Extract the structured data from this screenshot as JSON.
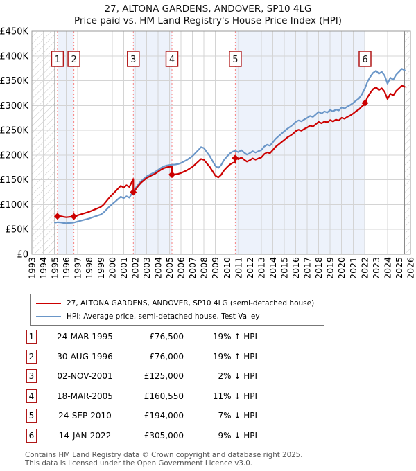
{
  "page": {
    "title_line1": "27, ALTONA GARDENS, ANDOVER, SP10 4LG",
    "title_line2": "Price paid vs. HM Land Registry's House Price Index (HPI)"
  },
  "chart_data": {
    "type": "line",
    "title": "27, ALTONA GARDENS, ANDOVER, SP10 4LG",
    "subtitle": "Price paid vs. HM Land Registry's House Price Index (HPI)",
    "x_axis": {
      "min": 1993,
      "max": 2026,
      "tick_years": [
        1993,
        1994,
        1995,
        1996,
        1997,
        1998,
        1999,
        2000,
        2001,
        2002,
        2003,
        2004,
        2005,
        2006,
        2007,
        2008,
        2009,
        2010,
        2011,
        2012,
        2013,
        2014,
        2015,
        2016,
        2017,
        2018,
        2019,
        2020,
        2021,
        2022,
        2023,
        2024,
        2025,
        2026
      ]
    },
    "y_axis": {
      "min_k": 0,
      "max_k": 450,
      "step_k": 50,
      "tick_labels": [
        "£0",
        "£50K",
        "£100K",
        "£150K",
        "£200K",
        "£250K",
        "£300K",
        "£350K",
        "£400K",
        "£450K"
      ]
    },
    "grid": true,
    "legend_position": "below",
    "values_unit": "GBP thousands",
    "data_range_years": [
      1995.0,
      2025.5
    ],
    "no_data_hatch": [
      [
        1993,
        1995.0
      ],
      [
        2025.5,
        2026
      ]
    ],
    "ownership_bands": [
      [
        1995.23,
        1996.66
      ],
      [
        2001.84,
        2005.21
      ],
      [
        2010.73,
        2022.04
      ]
    ],
    "colors": {
      "property": "#cc0000",
      "hpi": "#6a96c8",
      "band": "#edf2fb",
      "grid": "#d4d4d4",
      "sale_line": "#f88080",
      "marker_box_border": "#b01818",
      "hatch": "#c8c8c8",
      "boundary": "#8a8a8a",
      "axis_text": "#000000"
    },
    "sales": [
      {
        "n": 1,
        "year": 1995.23,
        "price_k": 76.5
      },
      {
        "n": 2,
        "year": 1996.66,
        "price_k": 76.0
      },
      {
        "n": 3,
        "year": 2001.84,
        "price_k": 125.0
      },
      {
        "n": 4,
        "year": 2005.21,
        "price_k": 160.55
      },
      {
        "n": 5,
        "year": 2010.73,
        "price_k": 194.0
      },
      {
        "n": 6,
        "year": 2022.04,
        "price_k": 305.0
      }
    ],
    "series": [
      {
        "id": "property",
        "z": 2,
        "name": "27, ALTONA GARDENS, ANDOVER, SP10 4LG (semi-detached house)",
        "color": "#cc0000",
        "points": [
          [
            1995.23,
            76.5
          ],
          [
            1995.4,
            76.8
          ],
          [
            1995.6,
            76.1
          ],
          [
            1995.8,
            75.2
          ],
          [
            1996.0,
            74.5
          ],
          [
            1996.2,
            75.0
          ],
          [
            1996.45,
            75.6
          ],
          [
            1996.66,
            76.0
          ],
          [
            1997.0,
            78.5
          ],
          [
            1997.25,
            80.3
          ],
          [
            1997.5,
            82.1
          ],
          [
            1997.75,
            83.9
          ],
          [
            1998.0,
            85.7
          ],
          [
            1998.25,
            88.1
          ],
          [
            1998.5,
            90.4
          ],
          [
            1998.75,
            92.8
          ],
          [
            1999.0,
            95.2
          ],
          [
            1999.25,
            100
          ],
          [
            1999.5,
            107.1
          ],
          [
            1999.75,
            114.2
          ],
          [
            2000.0,
            120.2
          ],
          [
            2000.25,
            126.1
          ],
          [
            2000.5,
            132.1
          ],
          [
            2000.75,
            138
          ],
          [
            2001.0,
            134.5
          ],
          [
            2001.25,
            139.2
          ],
          [
            2001.5,
            135.7
          ],
          [
            2001.84,
            151.8
          ],
          [
            2001.84,
            125
          ],
          [
            2002.0,
            129.3
          ],
          [
            2002.25,
            137.1
          ],
          [
            2002.5,
            144
          ],
          [
            2002.75,
            148.9
          ],
          [
            2003.0,
            153.8
          ],
          [
            2003.25,
            156.7
          ],
          [
            2003.5,
            159.7
          ],
          [
            2003.75,
            162.6
          ],
          [
            2004.0,
            166.5
          ],
          [
            2004.25,
            170.4
          ],
          [
            2004.5,
            173.4
          ],
          [
            2004.75,
            175.4
          ],
          [
            2005.0,
            176.3
          ],
          [
            2005.21,
            176.8
          ],
          [
            2005.21,
            160.55
          ],
          [
            2005.5,
            161.1
          ],
          [
            2005.75,
            162
          ],
          [
            2006.0,
            163.8
          ],
          [
            2006.25,
            166.4
          ],
          [
            2006.5,
            169.1
          ],
          [
            2006.75,
            172.7
          ],
          [
            2007.0,
            176.2
          ],
          [
            2007.25,
            181.6
          ],
          [
            2007.5,
            186.9
          ],
          [
            2007.75,
            192.2
          ],
          [
            2008.0,
            190.4
          ],
          [
            2008.25,
            183.3
          ],
          [
            2008.5,
            176.2
          ],
          [
            2008.75,
            167.3
          ],
          [
            2009.0,
            158.4
          ],
          [
            2009.25,
            154.9
          ],
          [
            2009.5,
            160.2
          ],
          [
            2009.75,
            169.1
          ],
          [
            2010.0,
            175.3
          ],
          [
            2010.25,
            180.7
          ],
          [
            2010.5,
            184.2
          ],
          [
            2010.73,
            185.7
          ],
          [
            2010.73,
            194
          ],
          [
            2011.0,
            191.6
          ],
          [
            2011.25,
            195.3
          ],
          [
            2011.5,
            190.7
          ],
          [
            2011.75,
            186.9
          ],
          [
            2012.0,
            189.7
          ],
          [
            2012.25,
            193.4
          ],
          [
            2012.5,
            190.7
          ],
          [
            2012.75,
            193.4
          ],
          [
            2013.0,
            195.3
          ],
          [
            2013.25,
            201.8
          ],
          [
            2013.5,
            205.5
          ],
          [
            2013.75,
            203.7
          ],
          [
            2014.0,
            210.2
          ],
          [
            2014.25,
            216.7
          ],
          [
            2014.5,
            221.3
          ],
          [
            2014.75,
            226
          ],
          [
            2015.0,
            230.6
          ],
          [
            2015.25,
            235.3
          ],
          [
            2015.5,
            239
          ],
          [
            2015.75,
            242.7
          ],
          [
            2016.0,
            248.3
          ],
          [
            2016.25,
            251.1
          ],
          [
            2016.5,
            249.2
          ],
          [
            2016.75,
            253
          ],
          [
            2017.0,
            255.8
          ],
          [
            2017.25,
            259.5
          ],
          [
            2017.5,
            257.6
          ],
          [
            2017.75,
            262.3
          ],
          [
            2018.0,
            266.9
          ],
          [
            2018.25,
            264.1
          ],
          [
            2018.5,
            267.8
          ],
          [
            2018.75,
            266
          ],
          [
            2019.0,
            270.6
          ],
          [
            2019.25,
            267.8
          ],
          [
            2019.5,
            271.6
          ],
          [
            2019.75,
            269.7
          ],
          [
            2020.0,
            275.3
          ],
          [
            2020.25,
            273.4
          ],
          [
            2020.5,
            277.1
          ],
          [
            2020.75,
            279.9
          ],
          [
            2021.0,
            283.7
          ],
          [
            2021.25,
            288.3
          ],
          [
            2021.5,
            292
          ],
          [
            2021.75,
            298
          ],
          [
            2022.04,
            303
          ],
          [
            2022.04,
            305
          ],
          [
            2022.25,
            316.7
          ],
          [
            2022.5,
            325.8
          ],
          [
            2022.75,
            333.1
          ],
          [
            2023.0,
            336.7
          ],
          [
            2023.25,
            331.2
          ],
          [
            2023.5,
            334.9
          ],
          [
            2023.75,
            327.6
          ],
          [
            2024.0,
            313
          ],
          [
            2024.25,
            324
          ],
          [
            2024.5,
            320.3
          ],
          [
            2024.75,
            329.4
          ],
          [
            2025.0,
            334.9
          ],
          [
            2025.25,
            340.3
          ],
          [
            2025.5,
            337.6
          ]
        ]
      },
      {
        "id": "hpi",
        "z": 1,
        "name": "HPI: Average price, semi-detached house, Test Valley",
        "color": "#6a96c8",
        "points": [
          [
            1995.0,
            63.5
          ],
          [
            1995.25,
            64.5
          ],
          [
            1995.5,
            64.0
          ],
          [
            1995.75,
            63.0
          ],
          [
            1996.0,
            62.5
          ],
          [
            1996.25,
            63.0
          ],
          [
            1996.5,
            63.5
          ],
          [
            1996.66,
            63.9
          ],
          [
            1997.0,
            66
          ],
          [
            1997.25,
            67.5
          ],
          [
            1997.5,
            69
          ],
          [
            1997.75,
            70.5
          ],
          [
            1998.0,
            72
          ],
          [
            1998.25,
            74
          ],
          [
            1998.5,
            76
          ],
          [
            1998.75,
            78
          ],
          [
            1999.0,
            80
          ],
          [
            1999.25,
            84
          ],
          [
            1999.5,
            90
          ],
          [
            1999.75,
            96
          ],
          [
            2000.0,
            101
          ],
          [
            2000.25,
            106
          ],
          [
            2000.5,
            111
          ],
          [
            2000.75,
            116
          ],
          [
            2001.0,
            113
          ],
          [
            2001.25,
            117
          ],
          [
            2001.5,
            114
          ],
          [
            2001.84,
            127.6
          ],
          [
            2002.0,
            132
          ],
          [
            2002.25,
            140
          ],
          [
            2002.5,
            147
          ],
          [
            2002.75,
            152
          ],
          [
            2003.0,
            157
          ],
          [
            2003.25,
            160
          ],
          [
            2003.5,
            163
          ],
          [
            2003.75,
            166
          ],
          [
            2004.0,
            170
          ],
          [
            2004.25,
            174
          ],
          [
            2004.5,
            177
          ],
          [
            2004.75,
            179
          ],
          [
            2005.0,
            180
          ],
          [
            2005.21,
            180.5
          ],
          [
            2005.5,
            181
          ],
          [
            2005.75,
            182
          ],
          [
            2006.0,
            184
          ],
          [
            2006.25,
            187
          ],
          [
            2006.5,
            190
          ],
          [
            2006.75,
            194
          ],
          [
            2007.0,
            198
          ],
          [
            2007.25,
            204
          ],
          [
            2007.5,
            210
          ],
          [
            2007.75,
            216
          ],
          [
            2008.0,
            214
          ],
          [
            2008.25,
            206
          ],
          [
            2008.5,
            198
          ],
          [
            2008.75,
            188
          ],
          [
            2009.0,
            178
          ],
          [
            2009.25,
            174
          ],
          [
            2009.5,
            180
          ],
          [
            2009.75,
            190
          ],
          [
            2010.0,
            197
          ],
          [
            2010.25,
            203
          ],
          [
            2010.5,
            207
          ],
          [
            2010.73,
            208.6
          ],
          [
            2011.0,
            206
          ],
          [
            2011.25,
            210
          ],
          [
            2011.5,
            205
          ],
          [
            2011.75,
            201
          ],
          [
            2012.0,
            204
          ],
          [
            2012.25,
            208
          ],
          [
            2012.5,
            205
          ],
          [
            2012.75,
            208
          ],
          [
            2013.0,
            210
          ],
          [
            2013.25,
            217
          ],
          [
            2013.5,
            221
          ],
          [
            2013.75,
            219
          ],
          [
            2014.0,
            226
          ],
          [
            2014.25,
            233
          ],
          [
            2014.5,
            238
          ],
          [
            2014.75,
            243
          ],
          [
            2015.0,
            248
          ],
          [
            2015.25,
            253
          ],
          [
            2015.5,
            257
          ],
          [
            2015.75,
            261
          ],
          [
            2016.0,
            267
          ],
          [
            2016.25,
            270
          ],
          [
            2016.5,
            268
          ],
          [
            2016.75,
            272
          ],
          [
            2017.0,
            275
          ],
          [
            2017.25,
            279
          ],
          [
            2017.5,
            277
          ],
          [
            2017.75,
            282
          ],
          [
            2018.0,
            287
          ],
          [
            2018.25,
            284
          ],
          [
            2018.5,
            288
          ],
          [
            2018.75,
            286
          ],
          [
            2019.0,
            291
          ],
          [
            2019.25,
            288
          ],
          [
            2019.5,
            292
          ],
          [
            2019.75,
            290
          ],
          [
            2020.0,
            296
          ],
          [
            2020.25,
            294
          ],
          [
            2020.5,
            298
          ],
          [
            2020.75,
            301
          ],
          [
            2021.0,
            305
          ],
          [
            2021.25,
            310
          ],
          [
            2021.5,
            314
          ],
          [
            2021.75,
            322
          ],
          [
            2022.04,
            335
          ],
          [
            2022.25,
            348
          ],
          [
            2022.5,
            358
          ],
          [
            2022.75,
            366
          ],
          [
            2023.0,
            370
          ],
          [
            2023.25,
            364
          ],
          [
            2023.5,
            368
          ],
          [
            2023.75,
            360
          ],
          [
            2024.0,
            344
          ],
          [
            2024.25,
            356
          ],
          [
            2024.5,
            352
          ],
          [
            2024.75,
            362
          ],
          [
            2025.0,
            368
          ],
          [
            2025.25,
            374
          ],
          [
            2025.5,
            371
          ]
        ]
      }
    ]
  },
  "legend": {
    "items": [
      {
        "label": "27, ALTONA GARDENS, ANDOVER, SP10 4LG (semi-detached house)",
        "color": "#cc0000"
      },
      {
        "label": "HPI: Average price, semi-detached house, Test Valley",
        "color": "#6a96c8"
      }
    ]
  },
  "sales_table": {
    "rows": [
      {
        "num": "1",
        "date": "24-MAR-1995",
        "price": "£76,500",
        "delta": "19% ↑ HPI"
      },
      {
        "num": "2",
        "date": "30-AUG-1996",
        "price": "£76,000",
        "delta": "19% ↑ HPI"
      },
      {
        "num": "3",
        "date": "02-NOV-2001",
        "price": "£125,000",
        "delta": "2% ↓ HPI"
      },
      {
        "num": "4",
        "date": "18-MAR-2005",
        "price": "£160,550",
        "delta": "11% ↓ HPI"
      },
      {
        "num": "5",
        "date": "24-SEP-2010",
        "price": "£194,000",
        "delta": "7% ↓ HPI"
      },
      {
        "num": "6",
        "date": "14-JAN-2022",
        "price": "£305,000",
        "delta": "9% ↓ HPI"
      }
    ]
  },
  "footer": {
    "line1": "Contains HM Land Registry data © Crown copyright and database right 2025.",
    "line2": "This data is licensed under the Open Government Licence v3.0."
  }
}
